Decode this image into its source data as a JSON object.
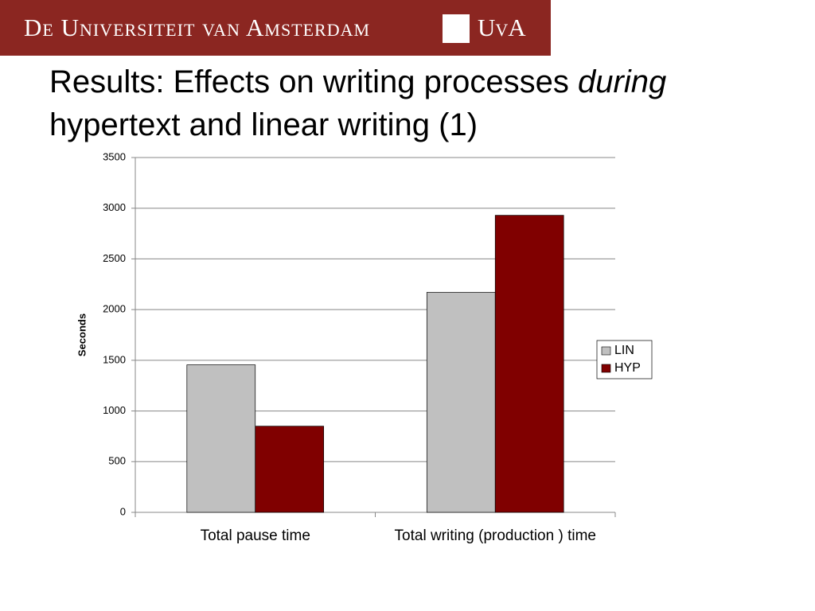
{
  "header": {
    "banner": "De Universiteit van Amsterdam",
    "logo": "UvA"
  },
  "title": [
    "Results: Effects on writing processes",
    "during",
    "hypertext and linear writing (1)"
  ],
  "chart_data": {
    "type": "bar",
    "y_label": "Seconds",
    "categories": [
      "Total pause time",
      "Total writing  (production ) time"
    ],
    "series": [
      {
        "name": "LIN",
        "color": "#c0c0c0",
        "values": [
          1455,
          2170
        ]
      },
      {
        "name": "HYP",
        "color": "#800000",
        "values": [
          850,
          2930
        ]
      }
    ],
    "ylim": [
      0,
      3500
    ],
    "yticks": [
      0,
      500,
      1000,
      1500,
      2000,
      2500,
      3000,
      3500
    ],
    "grid": true,
    "legend": "right"
  }
}
